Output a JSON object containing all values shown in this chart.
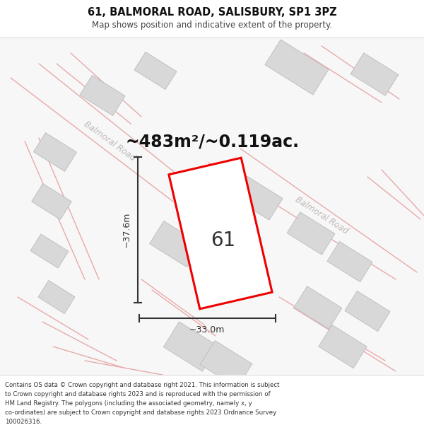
{
  "title": "61, BALMORAL ROAD, SALISBURY, SP1 3PZ",
  "subtitle": "Map shows position and indicative extent of the property.",
  "area_text": "~483m²/~0.119ac.",
  "label_number": "61",
  "dim_width": "~33.0m",
  "dim_height": "~37.6m",
  "road_label_upper": "Balmoral Road",
  "road_label_right": "Balmoral Road",
  "footer_lines": [
    "Contains OS data © Crown copyright and database right 2021. This information is subject",
    "to Crown copyright and database rights 2023 and is reproduced with the permission of",
    "HM Land Registry. The polygons (including the associated geometry, namely x, y",
    "co-ordinates) are subject to Crown copyright and database rights 2023 Ordnance Survey",
    "100026316."
  ],
  "map_bg": "#f7f7f7",
  "road_line_color": "#e8aaaa",
  "building_fill": "#d8d8d8",
  "building_edge": "#bbbbbb",
  "plot_edge": "#ee0000",
  "dim_color": "#333333",
  "road_text_color": "#c0b8b8",
  "title_fontsize": 10.5,
  "subtitle_fontsize": 8.5,
  "area_fontsize": 17,
  "label_fontsize": 20,
  "dim_fontsize": 9,
  "footer_fontsize": 6.2
}
